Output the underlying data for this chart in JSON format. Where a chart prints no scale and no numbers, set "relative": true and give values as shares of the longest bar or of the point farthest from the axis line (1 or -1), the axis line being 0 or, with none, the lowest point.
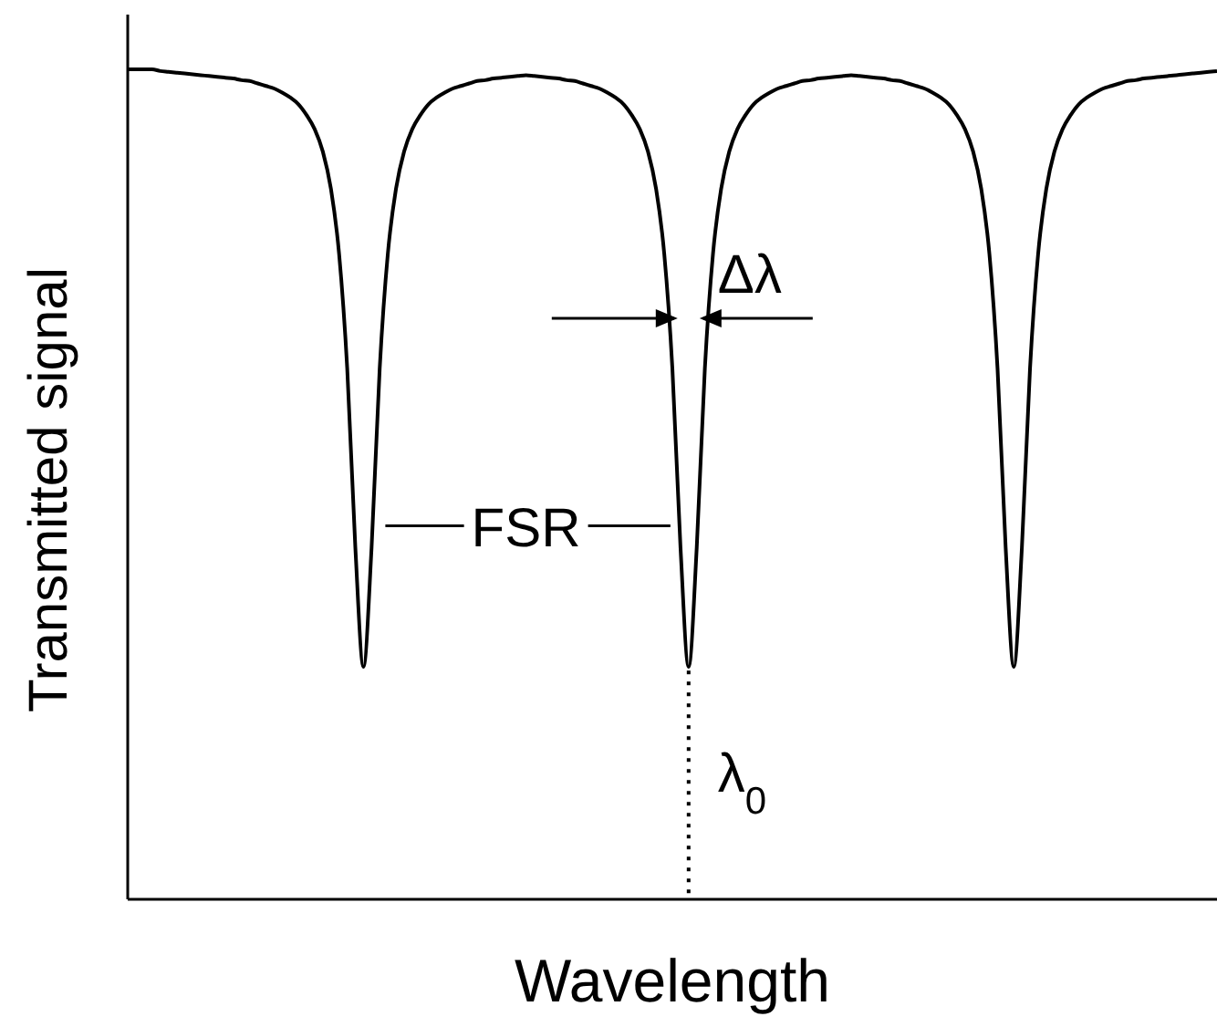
{
  "chart_data": {
    "type": "line",
    "xlabel": "Wavelength",
    "ylabel": "Transmitted signal",
    "relative": true,
    "color": "#000000",
    "annotations": [
      "Δλ",
      "FSR",
      "λ$_{0}$"
    ],
    "categories": [
      null,
      null,
      null,
      null,
      null,
      null,
      null,
      null,
      null,
      null,
      null,
      null,
      null,
      null,
      null,
      null,
      null,
      null,
      null,
      null,
      null,
      null,
      null,
      null,
      null,
      null,
      null,
      null,
      null,
      null,
      null,
      null,
      null,
      null,
      null,
      null,
      null,
      null,
      null,
      null,
      null,
      null,
      null,
      null,
      null,
      null,
      null,
      null,
      null,
      null,
      null,
      null,
      null,
      null,
      null,
      null,
      null,
      null,
      null,
      null,
      null,
      null,
      null,
      null,
      null,
      null,
      null,
      null,
      null,
      null,
      null,
      null,
      null,
      null,
      null,
      null,
      null,
      null,
      null,
      null,
      null,
      null,
      null,
      null,
      null,
      null,
      null,
      null,
      null,
      null,
      null,
      null,
      null,
      null,
      null,
      null,
      null,
      null,
      null,
      null,
      null,
      null,
      null,
      null,
      null,
      null,
      null,
      null,
      null,
      null,
      null,
      null,
      null,
      null,
      null,
      null,
      null,
      null,
      null,
      null,
      null,
      null,
      null,
      null,
      null,
      null,
      null,
      null,
      null,
      null,
      null,
      null,
      null,
      null,
      null
    ],
    "values": [
      1,
      1,
      1,
      1,
      0.998,
      0.997,
      0.996,
      0.995,
      0.994,
      0.993,
      0.992,
      0.991,
      0.99,
      0.989,
      0.987,
      0.986,
      0.983,
      0.98,
      0.977,
      0.972,
      0.966,
      0.958,
      0.945,
      0.928,
      0.901,
      0.856,
      0.778,
      0.64,
      0.424,
      0.28,
      0.424,
      0.64,
      0.778,
      0.856,
      0.901,
      0.928,
      0.945,
      0.958,
      0.966,
      0.972,
      0.977,
      0.98,
      0.983,
      0.986,
      0.987,
      0.989,
      0.99,
      0.991,
      0.992,
      0.993,
      0.992,
      0.991,
      0.99,
      0.989,
      0.987,
      0.986,
      0.983,
      0.98,
      0.977,
      0.972,
      0.966,
      0.958,
      0.945,
      0.928,
      0.901,
      0.856,
      0.778,
      0.64,
      0.424,
      0.28,
      0.424,
      0.64,
      0.778,
      0.856,
      0.901,
      0.928,
      0.945,
      0.958,
      0.966,
      0.972,
      0.977,
      0.98,
      0.983,
      0.986,
      0.987,
      0.989,
      0.99,
      0.991,
      0.992,
      0.993,
      0.992,
      0.991,
      0.99,
      0.989,
      0.987,
      0.986,
      0.983,
      0.98,
      0.977,
      0.972,
      0.966,
      0.958,
      0.945,
      0.928,
      0.901,
      0.856,
      0.778,
      0.64,
      0.424,
      0.28,
      0.424,
      0.64,
      0.778,
      0.856,
      0.901,
      0.928,
      0.945,
      0.958,
      0.966,
      0.972,
      0.977,
      0.98,
      0.983,
      0.986,
      0.987,
      0.989,
      0.99,
      0.991,
      0.992,
      0.993,
      0.994,
      0.995,
      0.996,
      0.997,
      0.998
    ]
  }
}
